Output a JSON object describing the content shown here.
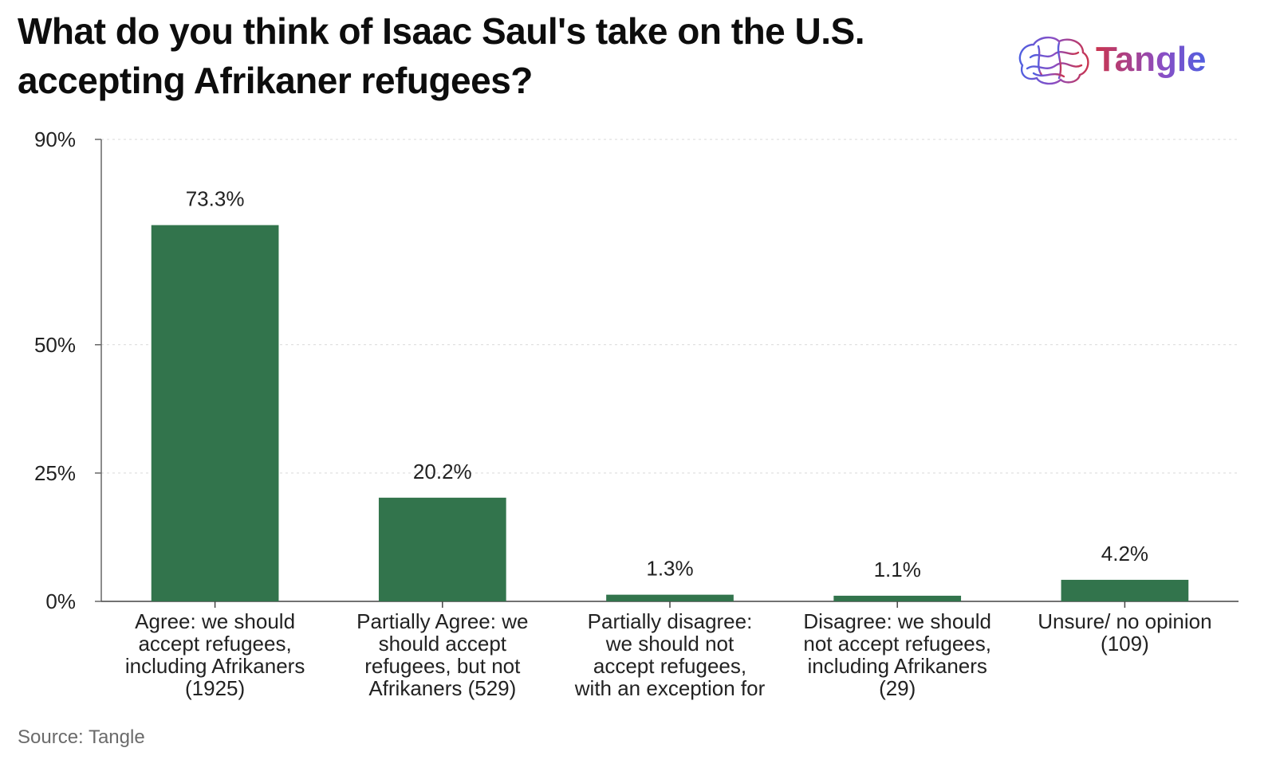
{
  "title": "What do you think of Isaac Saul's take on the U.S. accepting Afrikaner refugees?",
  "brand": {
    "name": "Tangle",
    "logo_icon": "brain-icon",
    "colors": [
      "#c9344f",
      "#8a4ec4",
      "#4f5fe0"
    ]
  },
  "source": "Source: Tangle",
  "chart_data": {
    "type": "bar",
    "title": "What do you think of Isaac Saul's take on the U.S. accepting Afrikaner refugees?",
    "categories": [
      [
        "Agree: we should",
        "accept refugees,",
        "including Afrikaners",
        "(1925)"
      ],
      [
        "Partially Agree: we",
        "should accept",
        "refugees, but not",
        "Afrikaners (529)"
      ],
      [
        "Partially disagree:",
        "we should not",
        "accept refugees,",
        "with an exception for"
      ],
      [
        "Disagree: we should",
        "not accept refugees,",
        "including Afrikaners",
        "(29)"
      ],
      [
        "Unsure/ no opinion",
        "(109)"
      ]
    ],
    "values": [
      73.3,
      20.2,
      1.3,
      1.1,
      4.2
    ],
    "value_labels": [
      "73.3%",
      "20.2%",
      "1.3%",
      "1.1%",
      "4.2%"
    ],
    "yticks": [
      0,
      25,
      50,
      90
    ],
    "ytick_labels": [
      "0%",
      "25%",
      "50%",
      "90%"
    ],
    "ylim": [
      0,
      90
    ],
    "bar_color": "#32744c",
    "grid": "dotted horizontal"
  }
}
